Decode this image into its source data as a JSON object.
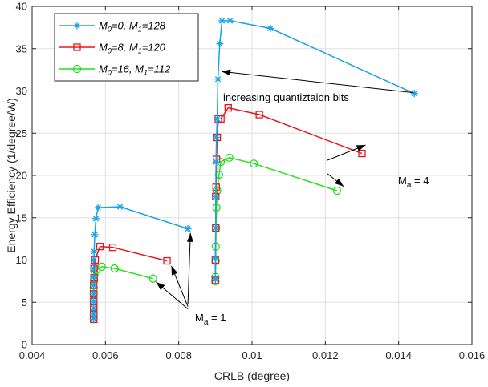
{
  "chart_data": {
    "type": "line",
    "xlabel": "CRLB (degree)",
    "ylabel": "Energy Efficiency (1/degree/W)",
    "xlim": [
      0.004,
      0.016
    ],
    "ylim": [
      0,
      40
    ],
    "xticks": [
      0.004,
      0.006,
      0.008,
      0.01,
      0.012,
      0.014,
      0.016
    ],
    "xtick_labels": [
      "0.004",
      "0.006",
      "0.008",
      "0.01",
      "0.012",
      "0.014",
      "0.016"
    ],
    "yticks": [
      0,
      5,
      10,
      15,
      20,
      25,
      30,
      35,
      40
    ],
    "ytick_labels": [
      "0",
      "5",
      "10",
      "15",
      "20",
      "25",
      "30",
      "35",
      "40"
    ],
    "grid": true,
    "legend_position": "top-left",
    "series": [
      {
        "name": "M0=0, M1=128",
        "name_parts": {
          "a": "M",
          "a_sub": "0",
          "b": "=0, M",
          "b_sub": "1",
          "c": "=128"
        },
        "color": "#1aa3e8",
        "marker": "asterisk",
        "groups": [
          {
            "x": [
              0.00568,
              0.00568,
              0.00568,
              0.00568,
              0.00568,
              0.00568,
              0.00568,
              0.00568,
              0.00568,
              0.00569,
              0.00571,
              0.00574,
              0.0058,
              0.0064,
              0.00825
            ],
            "y": [
              3.0,
              3.6,
              4.3,
              5.1,
              6.0,
              7.0,
              8.0,
              9.0,
              10.0,
              11.0,
              13.0,
              14.9,
              16.2,
              16.3,
              13.7
            ]
          },
          {
            "x": [
              0.009,
              0.009,
              0.00901,
              0.00901,
              0.00902,
              0.00903,
              0.00905,
              0.00907,
              0.00912,
              0.00918,
              0.0094,
              0.0105,
              0.01443
            ],
            "y": [
              7.7,
              10.2,
              13.8,
              17.5,
              21.6,
              24.5,
              26.7,
              31.4,
              35.6,
              38.3,
              38.3,
              37.4,
              29.7
            ]
          }
        ]
      },
      {
        "name": "M0=8, M1=120",
        "name_parts": {
          "a": "M",
          "a_sub": "0",
          "b": "=8, M",
          "b_sub": "1",
          "c": "=120"
        },
        "color": "#e8161b",
        "marker": "square",
        "groups": [
          {
            "x": [
              0.00568,
              0.00568,
              0.00568,
              0.00568,
              0.00568,
              0.00568,
              0.00569,
              0.00569,
              0.00572,
              0.00585,
              0.0062,
              0.00768
            ],
            "y": [
              3.0,
              3.6,
              4.3,
              5.1,
              6.0,
              7.0,
              7.9,
              9.0,
              10.0,
              11.6,
              11.5,
              9.9
            ]
          },
          {
            "x": [
              0.009,
              0.009,
              0.00901,
              0.00901,
              0.00902,
              0.00903,
              0.00905,
              0.00908,
              0.00915,
              0.00935,
              0.0102,
              0.013
            ],
            "y": [
              7.6,
              10.0,
              13.8,
              17.5,
              18.6,
              21.9,
              24.5,
              26.7,
              26.7,
              28.0,
              27.2,
              22.6
            ]
          }
        ]
      },
      {
        "name": "M0=16, M1=112",
        "name_parts": {
          "a": "M",
          "a_sub": "0",
          "b": "=16, M",
          "b_sub": "1",
          "c": "=112"
        },
        "color": "#22e01c",
        "marker": "circle",
        "groups": [
          {
            "x": [
              0.00568,
              0.00568,
              0.00568,
              0.00568,
              0.00568,
              0.00568,
              0.00569,
              0.0057,
              0.00575,
              0.0059,
              0.00625,
              0.0073
            ],
            "y": [
              3.0,
              3.6,
              4.3,
              5.1,
              6.0,
              6.7,
              7.6,
              8.2,
              8.8,
              9.2,
              9.0,
              7.8
            ]
          },
          {
            "x": [
              0.009,
              0.009,
              0.00901,
              0.00901,
              0.00902,
              0.00903,
              0.00905,
              0.0091,
              0.00915,
              0.00938,
              0.01005,
              0.01232
            ],
            "y": [
              7.5,
              8.0,
              9.9,
              11.6,
              13.8,
              16.2,
              18.2,
              20.1,
              21.6,
              22.1,
              21.4,
              18.2
            ]
          }
        ]
      }
    ],
    "annotations": [
      {
        "text": "increasing quantiztaion bits",
        "x": 0.00905,
        "y": 28.6
      },
      {
        "text_main": "M",
        "text_sub": "a",
        "text_rest": " = 4",
        "x": 0.01215,
        "y": 20.0
      },
      {
        "text_main": "M",
        "text_sub": "a",
        "text_rest": " = 1",
        "x": 0.00765,
        "y": 3.0
      }
    ],
    "arrows": [
      {
        "from": [
          0.0144,
          29.8
        ],
        "to": [
          0.00917,
          32.3
        ]
      },
      {
        "from": [
          0.01206,
          21.8
        ],
        "to": [
          0.0131,
          23.6
        ]
      },
      {
        "from": [
          0.01206,
          20.2
        ],
        "to": [
          0.0125,
          18.7
        ]
      },
      {
        "from": [
          0.00825,
          4.8
        ],
        "to": [
          0.00832,
          13.2
        ]
      },
      {
        "from": [
          0.00825,
          4.5
        ],
        "to": [
          0.0078,
          9.3
        ]
      },
      {
        "from": [
          0.00825,
          4.2
        ],
        "to": [
          0.00738,
          7.4
        ]
      }
    ]
  }
}
